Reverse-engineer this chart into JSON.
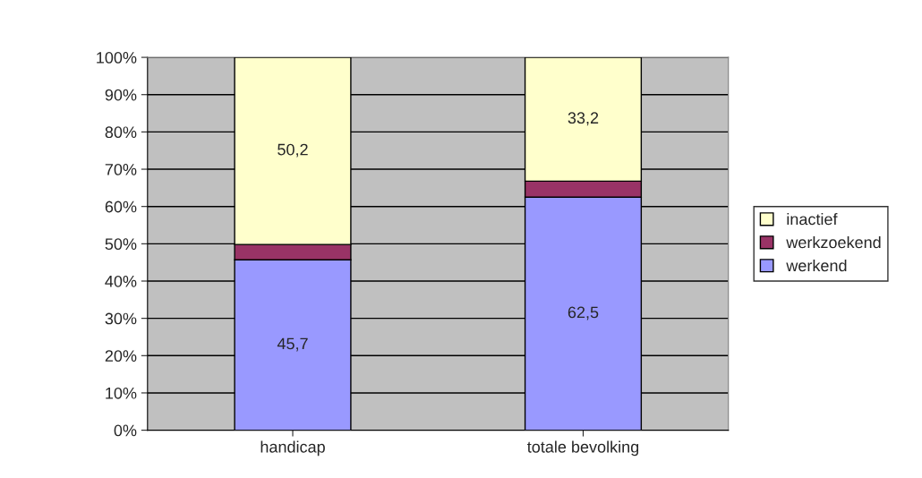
{
  "chart_data": {
    "type": "bar",
    "stacked": true,
    "categories": [
      "handicap",
      "totale bevolking"
    ],
    "series": [
      {
        "name": "werkend",
        "color": "#9999ff",
        "values": [
          45.7,
          62.5
        ],
        "value_labels": [
          "45,7",
          "62,5"
        ]
      },
      {
        "name": "werkzoekend",
        "color": "#993366",
        "values": [
          4.1,
          4.3
        ],
        "value_labels": [
          null,
          null
        ]
      },
      {
        "name": "inactief",
        "color": "#ffffcc",
        "values": [
          50.2,
          33.2
        ],
        "value_labels": [
          "50,2",
          "33,2"
        ]
      }
    ],
    "ylim": [
      0,
      100
    ],
    "yticks": [
      {
        "value": 0,
        "label": "0%"
      },
      {
        "value": 10,
        "label": "10%"
      },
      {
        "value": 20,
        "label": "20%"
      },
      {
        "value": 30,
        "label": "30%"
      },
      {
        "value": 40,
        "label": "40%"
      },
      {
        "value": 50,
        "label": "50%"
      },
      {
        "value": 60,
        "label": "60%"
      },
      {
        "value": 70,
        "label": "70%"
      },
      {
        "value": 80,
        "label": "80%"
      },
      {
        "value": 90,
        "label": "90%"
      },
      {
        "value": 100,
        "label": "100%"
      }
    ],
    "grid": "y",
    "legend": "right"
  }
}
